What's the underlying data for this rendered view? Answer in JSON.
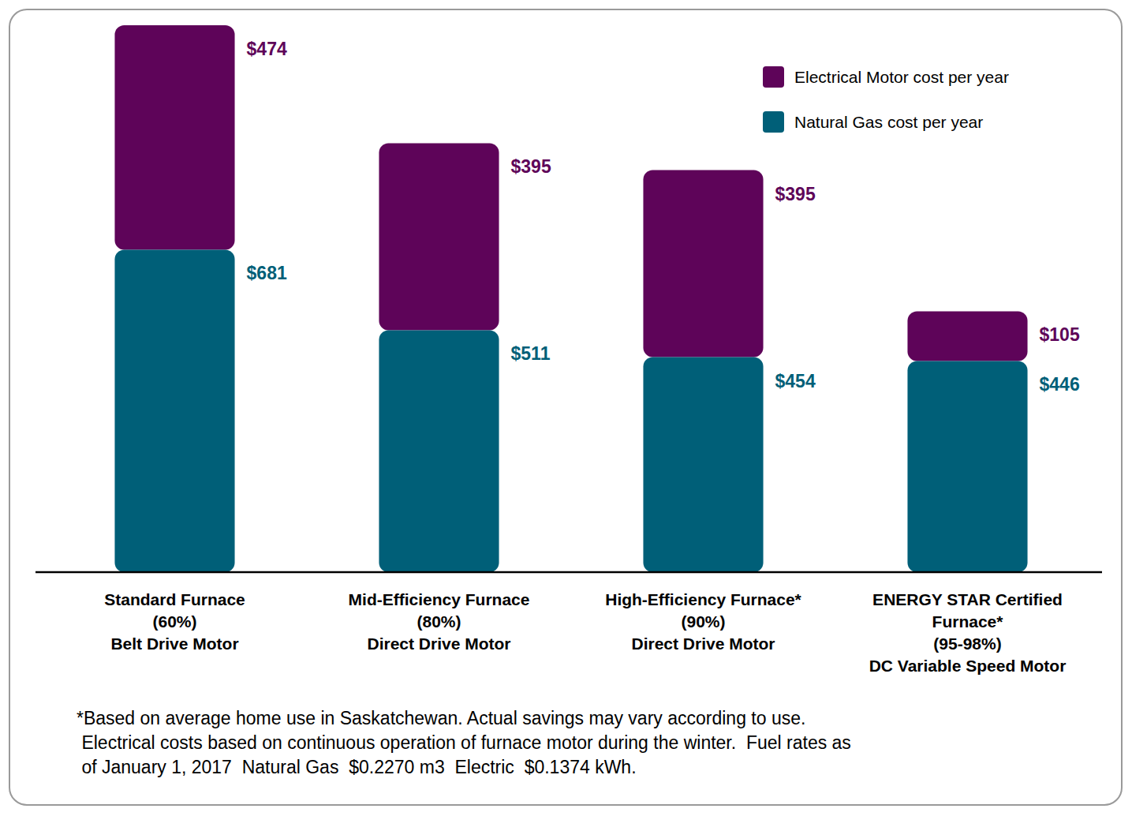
{
  "chart_data": {
    "type": "bar",
    "stacked": true,
    "data_labels": true,
    "tick_labels": "x",
    "legend": "top-right",
    "categories": [
      "Standard Furnace\n(60%)\nBelt Drive Motor",
      "Mid-Efficiency Furnace\n(80%)\nDirect Drive Motor",
      "High-Efficiency Furnace*\n(90%)\nDirect Drive Motor",
      "ENERGY STAR Certified\nFurnace*\n(95-98%)\nDC Variable Speed Motor"
    ],
    "series": [
      {
        "name": "Natural Gas cost per year",
        "color": "#005f78",
        "values": [
          681,
          511,
          454,
          446
        ],
        "value_labels": [
          "$681",
          "$511",
          "$454",
          "$446"
        ]
      },
      {
        "name": "Electrical Motor cost per year",
        "color": "#5e0459",
        "values": [
          474,
          395,
          395,
          105
        ],
        "value_labels": [
          "$474",
          "$395",
          "$395",
          "$105"
        ]
      }
    ],
    "ylim": [
      0,
      1200
    ],
    "annotations": [
      "*Based on average home use in Saskatchewan. Actual savings may vary according to use.",
      " Electrical costs based on continuous operation of furnace motor during the winter.  Fuel rates as",
      " of January 1, 2017  Natural Gas  $0.2270 m3  Electric  $0.1374 kWh."
    ]
  }
}
